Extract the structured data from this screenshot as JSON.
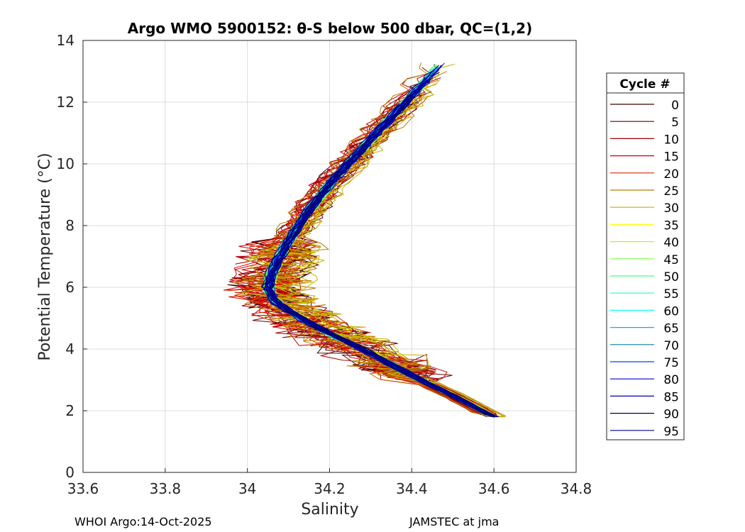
{
  "chart_data": {
    "type": "line",
    "title": "Argo WMO 5900152: θ-S below 500 dbar,  QC=(1,2)",
    "xlabel": "Salinity",
    "ylabel": "Potential Temperature (°C)",
    "xlim": [
      33.6,
      34.8
    ],
    "ylim": [
      0,
      14
    ],
    "xticks": [
      "33.6",
      "33.8",
      "34",
      "34.2",
      "34.4",
      "34.6",
      "34.8"
    ],
    "xtick_values": [
      33.6,
      33.8,
      34.0,
      34.2,
      34.4,
      34.6,
      34.8
    ],
    "yticks": [
      "0",
      "2",
      "4",
      "6",
      "8",
      "10",
      "12",
      "14"
    ],
    "ytick_values": [
      0,
      2,
      4,
      6,
      8,
      10,
      12,
      14
    ],
    "grid": true,
    "legend_title": "Cycle #",
    "legend_placement": "outside-right",
    "representative_profile": {
      "theta": [
        13.2,
        12.5,
        11.5,
        10.5,
        9.5,
        8.5,
        7.5,
        7.0,
        6.5,
        6.0,
        5.5,
        5.0,
        4.5,
        4.0,
        3.5,
        3.0,
        2.5,
        2.0,
        1.8
      ],
      "salinity": [
        34.47,
        34.42,
        34.35,
        34.28,
        34.21,
        34.15,
        34.1,
        34.08,
        34.06,
        34.05,
        34.07,
        34.13,
        34.2,
        34.28,
        34.35,
        34.42,
        34.5,
        34.57,
        34.6
      ]
    },
    "series": [
      {
        "name": "0",
        "color": "#3a0000"
      },
      {
        "name": "5",
        "color": "#6a0000"
      },
      {
        "name": "10",
        "color": "#a00000"
      },
      {
        "name": "15",
        "color": "#cc0000"
      },
      {
        "name": "20",
        "color": "#dd2200"
      },
      {
        "name": "25",
        "color": "#bb7a00"
      },
      {
        "name": "30",
        "color": "#c8b400"
      },
      {
        "name": "35",
        "color": "#ffff00"
      },
      {
        "name": "40",
        "color": "#c8f000"
      },
      {
        "name": "45",
        "color": "#80ff40"
      },
      {
        "name": "50",
        "color": "#40ff80"
      },
      {
        "name": "55",
        "color": "#20ffc0"
      },
      {
        "name": "60",
        "color": "#00ffff"
      },
      {
        "name": "65",
        "color": "#00b8d0"
      },
      {
        "name": "70",
        "color": "#0080a0"
      },
      {
        "name": "75",
        "color": "#0040ff"
      },
      {
        "name": "80",
        "color": "#0000e0"
      },
      {
        "name": "85",
        "color": "#0000b0"
      },
      {
        "name": "90",
        "color": "#000050"
      },
      {
        "name": "95",
        "color": "#00008a"
      }
    ]
  },
  "footer": {
    "left": "WHOI Argo:14-Oct-2025",
    "right": "JAMSTEC at jma"
  }
}
